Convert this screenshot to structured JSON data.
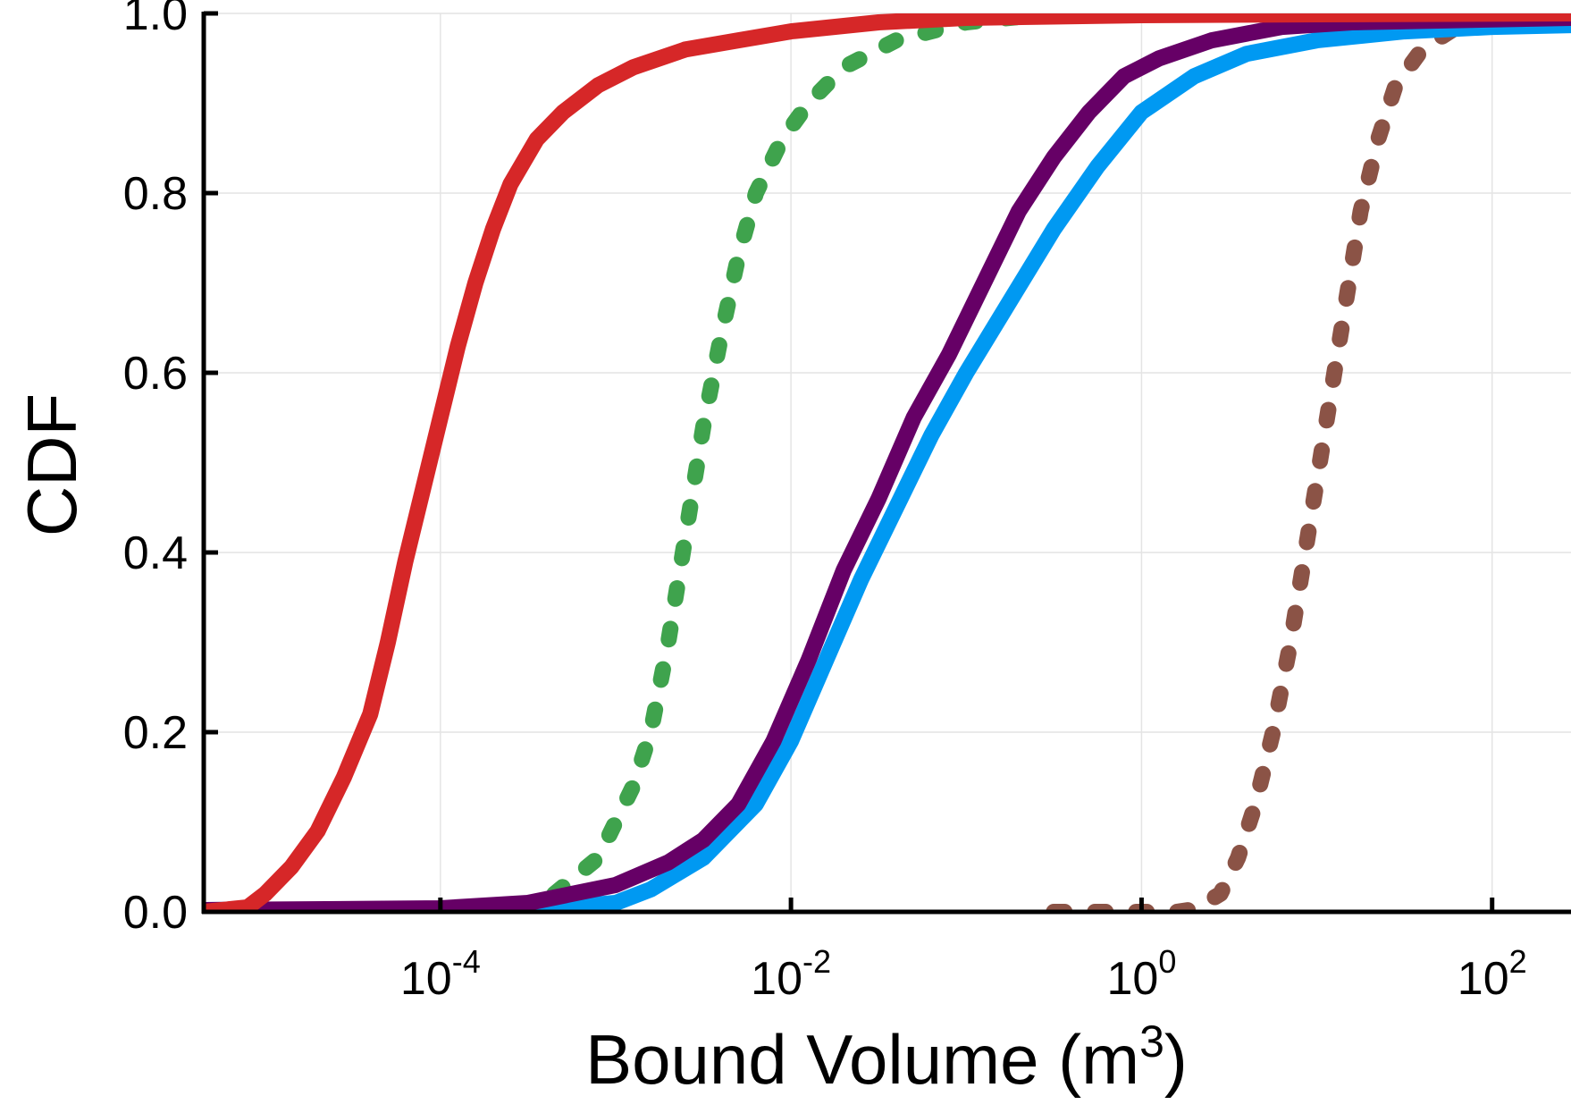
{
  "chart_data": {
    "type": "line",
    "title": "",
    "xlabel": "Bound Volume (m",
    "xlabel_superscript": "3",
    "xlabel_suffix": ")",
    "ylabel": "CDF",
    "xscale": "log",
    "xlim_log10": [
      -5.35,
      2.45
    ],
    "ylim": [
      0,
      1.0
    ],
    "grid": true,
    "legend": "none",
    "x_ticks": [
      {
        "exp": -4,
        "base": "10",
        "sup": "-4"
      },
      {
        "exp": -2,
        "base": "10",
        "sup": "-2"
      },
      {
        "exp": 0,
        "base": "10",
        "sup": "0"
      },
      {
        "exp": 2,
        "base": "10",
        "sup": "2"
      }
    ],
    "y_ticks": [
      {
        "value": 0.0,
        "label": "0.0"
      },
      {
        "value": 0.2,
        "label": "0.2"
      },
      {
        "value": 0.4,
        "label": "0.4"
      },
      {
        "value": 0.6,
        "label": "0.6"
      },
      {
        "value": 0.8,
        "label": "0.8"
      },
      {
        "value": 1.0,
        "label": "1.0"
      }
    ],
    "series": [
      {
        "name": "brown-dashed",
        "color": "#8b5346",
        "style": "dashed",
        "points": [
          [
            -0.5,
            0.0
          ],
          [
            0.2,
            0.0
          ],
          [
            0.3,
            0.003
          ],
          [
            0.45,
            0.02
          ],
          [
            0.55,
            0.06
          ],
          [
            0.65,
            0.12
          ],
          [
            0.75,
            0.2
          ],
          [
            0.85,
            0.3
          ],
          [
            0.95,
            0.42
          ],
          [
            1.05,
            0.54
          ],
          [
            1.15,
            0.66
          ],
          [
            1.25,
            0.78
          ],
          [
            1.35,
            0.86
          ],
          [
            1.45,
            0.92
          ],
          [
            1.6,
            0.96
          ],
          [
            1.8,
            0.985
          ],
          [
            2.0,
            0.99
          ],
          [
            2.2,
            0.995
          ],
          [
            2.45,
            0.997
          ]
        ]
      },
      {
        "name": "green-dashed",
        "color": "#3fa34d",
        "style": "dashed",
        "points": [
          [
            -3.35,
            0.02
          ],
          [
            -3.1,
            0.06
          ],
          [
            -2.9,
            0.14
          ],
          [
            -2.8,
            0.2
          ],
          [
            -2.7,
            0.3
          ],
          [
            -2.6,
            0.42
          ],
          [
            -2.5,
            0.54
          ],
          [
            -2.4,
            0.64
          ],
          [
            -2.3,
            0.73
          ],
          [
            -2.2,
            0.8
          ],
          [
            -2.05,
            0.86
          ],
          [
            -1.9,
            0.9
          ],
          [
            -1.7,
            0.94
          ],
          [
            -1.4,
            0.97
          ],
          [
            -1.0,
            0.99
          ],
          [
            -0.6,
            0.998
          ]
        ]
      },
      {
        "name": "blue",
        "color": "#0099f2",
        "style": "solid",
        "points": [
          [
            -5.35,
            0.002
          ],
          [
            -4.0,
            0.003
          ],
          [
            -3.3,
            0.005
          ],
          [
            -3.0,
            0.01
          ],
          [
            -2.8,
            0.025
          ],
          [
            -2.5,
            0.06
          ],
          [
            -2.2,
            0.12
          ],
          [
            -2.0,
            0.19
          ],
          [
            -1.8,
            0.28
          ],
          [
            -1.6,
            0.37
          ],
          [
            -1.4,
            0.45
          ],
          [
            -1.2,
            0.53
          ],
          [
            -1.0,
            0.6
          ],
          [
            -0.75,
            0.68
          ],
          [
            -0.5,
            0.76
          ],
          [
            -0.25,
            0.83
          ],
          [
            0.0,
            0.89
          ],
          [
            0.3,
            0.93
          ],
          [
            0.6,
            0.955
          ],
          [
            1.0,
            0.97
          ],
          [
            1.5,
            0.98
          ],
          [
            2.0,
            0.985
          ],
          [
            2.45,
            0.987
          ]
        ]
      },
      {
        "name": "purple",
        "color": "#660066",
        "style": "solid",
        "points": [
          [
            -5.35,
            0.002
          ],
          [
            -4.0,
            0.004
          ],
          [
            -3.5,
            0.01
          ],
          [
            -3.0,
            0.03
          ],
          [
            -2.7,
            0.055
          ],
          [
            -2.5,
            0.08
          ],
          [
            -2.3,
            0.12
          ],
          [
            -2.1,
            0.19
          ],
          [
            -1.9,
            0.28
          ],
          [
            -1.7,
            0.38
          ],
          [
            -1.5,
            0.46
          ],
          [
            -1.3,
            0.55
          ],
          [
            -1.1,
            0.62
          ],
          [
            -0.9,
            0.7
          ],
          [
            -0.7,
            0.78
          ],
          [
            -0.5,
            0.84
          ],
          [
            -0.3,
            0.89
          ],
          [
            -0.1,
            0.93
          ],
          [
            0.1,
            0.95
          ],
          [
            0.4,
            0.97
          ],
          [
            0.8,
            0.985
          ],
          [
            1.2,
            0.99
          ],
          [
            2.45,
            0.995
          ]
        ]
      },
      {
        "name": "red",
        "color": "#d62728",
        "style": "solid",
        "points": [
          [
            -5.35,
            0.0
          ],
          [
            -5.1,
            0.005
          ],
          [
            -5.0,
            0.02
          ],
          [
            -4.85,
            0.05
          ],
          [
            -4.7,
            0.09
          ],
          [
            -4.55,
            0.15
          ],
          [
            -4.4,
            0.22
          ],
          [
            -4.3,
            0.3
          ],
          [
            -4.2,
            0.39
          ],
          [
            -4.1,
            0.47
          ],
          [
            -4.0,
            0.55
          ],
          [
            -3.9,
            0.63
          ],
          [
            -3.8,
            0.7
          ],
          [
            -3.7,
            0.76
          ],
          [
            -3.6,
            0.81
          ],
          [
            -3.45,
            0.86
          ],
          [
            -3.3,
            0.89
          ],
          [
            -3.1,
            0.92
          ],
          [
            -2.9,
            0.94
          ],
          [
            -2.6,
            0.96
          ],
          [
            -2.3,
            0.97
          ],
          [
            -2.0,
            0.98
          ],
          [
            -1.5,
            0.99
          ],
          [
            -1.0,
            0.995
          ],
          [
            0.0,
            0.998
          ],
          [
            1.0,
            0.999
          ],
          [
            2.45,
            1.0
          ]
        ]
      }
    ]
  }
}
